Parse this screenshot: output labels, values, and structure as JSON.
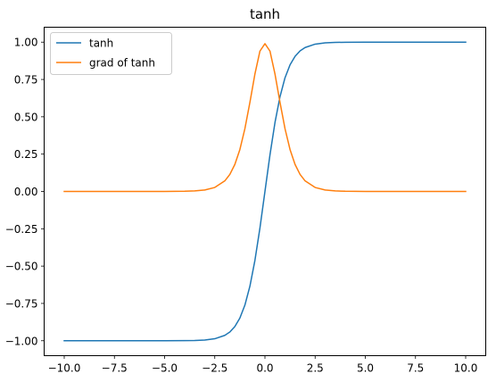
{
  "chart_data": {
    "type": "line",
    "title": "tanh",
    "xlabel": "",
    "ylabel": "",
    "xlim": [
      -11,
      11
    ],
    "ylim": [
      -1.1,
      1.1
    ],
    "xticks": [
      -10,
      -7.5,
      -5,
      -2.5,
      0,
      2.5,
      5,
      7.5,
      10
    ],
    "xtick_labels": [
      "−10.0",
      "−7.5",
      "−5.0",
      "−2.5",
      "0.0",
      "2.5",
      "5.0",
      "7.5",
      "10.0"
    ],
    "yticks": [
      -1,
      -0.75,
      -0.5,
      -0.25,
      0,
      0.25,
      0.5,
      0.75,
      1
    ],
    "ytick_labels": [
      "−1.00",
      "−0.75",
      "−0.50",
      "−0.25",
      "0.00",
      "0.25",
      "0.50",
      "0.75",
      "1.00"
    ],
    "grid": false,
    "legend_position": "top-left",
    "series": [
      {
        "name": "tanh",
        "color": "#1f77b4",
        "x": [
          -10,
          -9,
          -8,
          -7,
          -6,
          -5,
          -4,
          -3.5,
          -3,
          -2.5,
          -2,
          -1.75,
          -1.5,
          -1.25,
          -1,
          -0.75,
          -0.5,
          -0.25,
          0,
          0.25,
          0.5,
          0.75,
          1,
          1.25,
          1.5,
          1.75,
          2,
          2.5,
          3,
          3.5,
          4,
          5,
          6,
          7,
          8,
          9,
          10
        ],
        "values": [
          -1.0,
          -1.0,
          -1.0,
          -1.0,
          -1.0,
          -0.9999,
          -0.9993,
          -0.9982,
          -0.9951,
          -0.9866,
          -0.964,
          -0.9414,
          -0.9051,
          -0.8483,
          -0.7616,
          -0.6351,
          -0.4621,
          -0.2449,
          0.0,
          0.2449,
          0.4621,
          0.6351,
          0.7616,
          0.8483,
          0.9051,
          0.9414,
          0.964,
          0.9866,
          0.9951,
          0.9982,
          0.9993,
          0.9999,
          1.0,
          1.0,
          1.0,
          1.0,
          1.0
        ]
      },
      {
        "name": "grad of tanh",
        "color": "#ff7f0e",
        "x": [
          -10,
          -9,
          -8,
          -7,
          -6,
          -5,
          -4,
          -3.5,
          -3,
          -2.5,
          -2,
          -1.75,
          -1.5,
          -1.25,
          -1,
          -0.75,
          -0.5,
          -0.25,
          0,
          0.25,
          0.5,
          0.75,
          1,
          1.25,
          1.5,
          1.75,
          2,
          2.5,
          3,
          3.5,
          4,
          5,
          6,
          7,
          8,
          9,
          10
        ],
        "values": [
          0.0,
          0.0,
          0.0,
          0.0,
          0.0,
          0.0002,
          0.0013,
          0.0036,
          0.0099,
          0.0266,
          0.0707,
          0.1138,
          0.1807,
          0.2804,
          0.42,
          0.5966,
          0.7864,
          0.94,
          0.99,
          0.94,
          0.7864,
          0.5966,
          0.42,
          0.2804,
          0.1807,
          0.1138,
          0.0707,
          0.0266,
          0.0099,
          0.0036,
          0.0013,
          0.0002,
          0.0,
          0.0,
          0.0,
          0.0,
          0.0
        ]
      }
    ]
  }
}
